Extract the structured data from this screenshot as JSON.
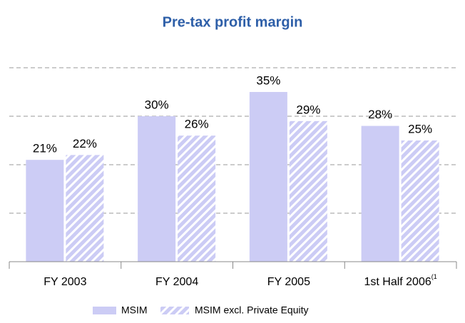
{
  "chart_data": {
    "type": "bar",
    "title": "Pre-tax profit margin",
    "categories": [
      "FY 2003",
      "FY 2004",
      "FY 2005",
      "1st Half 2006"
    ],
    "footnote_mark": "(1",
    "series": [
      {
        "name": "MSIM",
        "color": "#ccccf5",
        "pattern": "solid",
        "values": [
          21,
          30,
          35,
          28
        ],
        "value_labels": [
          "21%",
          "30%",
          "35%",
          "28%"
        ]
      },
      {
        "name": "MSIM excl. Private Equity",
        "color": "#ccccf5",
        "pattern": "hatched",
        "values": [
          22,
          26,
          29,
          25
        ],
        "value_labels": [
          "22%",
          "26%",
          "29%",
          "25%"
        ]
      }
    ],
    "ylim": [
      0,
      40
    ],
    "yticks": [
      0,
      10,
      20,
      30,
      40
    ],
    "grid": true
  }
}
